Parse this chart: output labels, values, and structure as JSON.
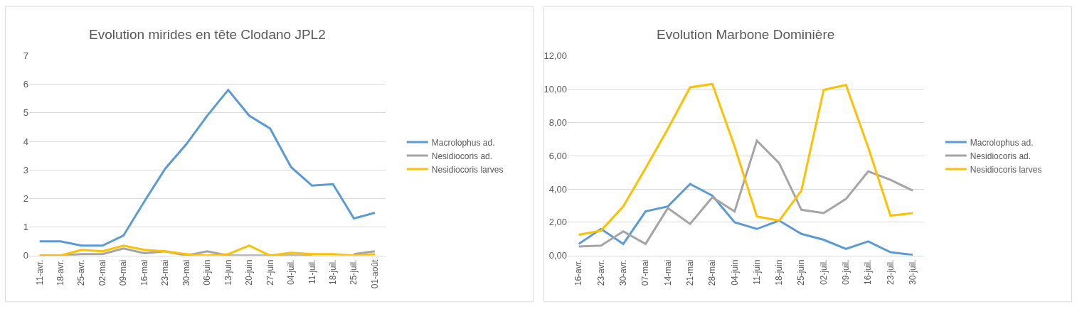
{
  "chart_data": [
    {
      "type": "line",
      "title": "Evolution mirides en tête Clodano JPL2",
      "categories": [
        "11-avr.",
        "18-avr.",
        "25-avr.",
        "02-mai",
        "09-mai",
        "16-mai",
        "23-mai",
        "30-mai",
        "06-juin",
        "13-juin",
        "20-juin",
        "27-juin",
        "04-juil.",
        "11-juil.",
        "18-juil.",
        "25-juil.",
        "01-août"
      ],
      "series": [
        {
          "name": "Macrolophus ad.",
          "color": "#5b9bd5",
          "values": [
            0.5,
            0.5,
            0.35,
            0.35,
            0.7,
            1.9,
            3.05,
            3.9,
            4.9,
            5.8,
            4.9,
            4.45,
            3.1,
            2.45,
            2.5,
            1.3,
            1.5
          ]
        },
        {
          "name": "Nesidiocoris ad.",
          "color": "#a5a5a5",
          "values": [
            0,
            0,
            0.05,
            0.05,
            0.25,
            0.08,
            0.15,
            0,
            0.15,
            0,
            0,
            0,
            0,
            0,
            null,
            0.05,
            0.15
          ]
        },
        {
          "name": "Nesidiocoris larves",
          "color": "#ffc000",
          "values": [
            0,
            0,
            0.2,
            0.15,
            0.35,
            0.2,
            0.15,
            0.05,
            0,
            0.05,
            0.35,
            0,
            0.1,
            0.05,
            0.05,
            0,
            0.05
          ]
        }
      ],
      "ylim": [
        0,
        7
      ],
      "yticks": [
        0,
        1,
        2,
        3,
        4,
        5,
        6,
        7
      ],
      "grid": "y",
      "legend": "right"
    },
    {
      "type": "line",
      "title": "Evolution Marbone Dominière",
      "categories": [
        "16-avr.",
        "23-avr.",
        "30-avr.",
        "07-mai",
        "14-mai",
        "21-mai",
        "28-mai",
        "04-juin",
        "11-juin",
        "18-juin",
        "25-juin",
        "02-juil.",
        "09-juil.",
        "16-juil.",
        "23-juil.",
        "30-juil."
      ],
      "series": [
        {
          "name": "Macrolophus ad.",
          "color": "#5b9bd5",
          "values": [
            0.7,
            1.6,
            0.7,
            2.65,
            2.95,
            4.3,
            3.6,
            2.0,
            1.6,
            2.1,
            1.3,
            0.95,
            0.4,
            0.85,
            0.2,
            0.05
          ]
        },
        {
          "name": "Nesidiocoris ad.",
          "color": "#a5a5a5",
          "values": [
            0.55,
            0.6,
            1.45,
            0.7,
            2.85,
            1.9,
            3.5,
            2.65,
            6.9,
            5.55,
            2.75,
            2.55,
            3.4,
            5.05,
            4.55,
            3.9
          ]
        },
        {
          "name": "Nesidiocoris larves",
          "color": "#ffc000",
          "values": [
            1.25,
            1.5,
            2.95,
            5.25,
            7.6,
            10.1,
            10.3,
            6.55,
            2.35,
            2.1,
            3.9,
            9.95,
            10.25,
            6.5,
            2.4,
            2.55
          ]
        }
      ],
      "ylim": [
        0,
        12
      ],
      "yticks": [
        {
          "value": 0,
          "label": "0,00"
        },
        {
          "value": 2,
          "label": "2,00"
        },
        {
          "value": 4,
          "label": "4,00"
        },
        {
          "value": 6,
          "label": "6,00"
        },
        {
          "value": 8,
          "label": "8,00"
        },
        {
          "value": 10,
          "label": "10,00"
        },
        {
          "value": 12,
          "label": "12,00"
        }
      ],
      "grid": "y",
      "legend": "right"
    }
  ]
}
